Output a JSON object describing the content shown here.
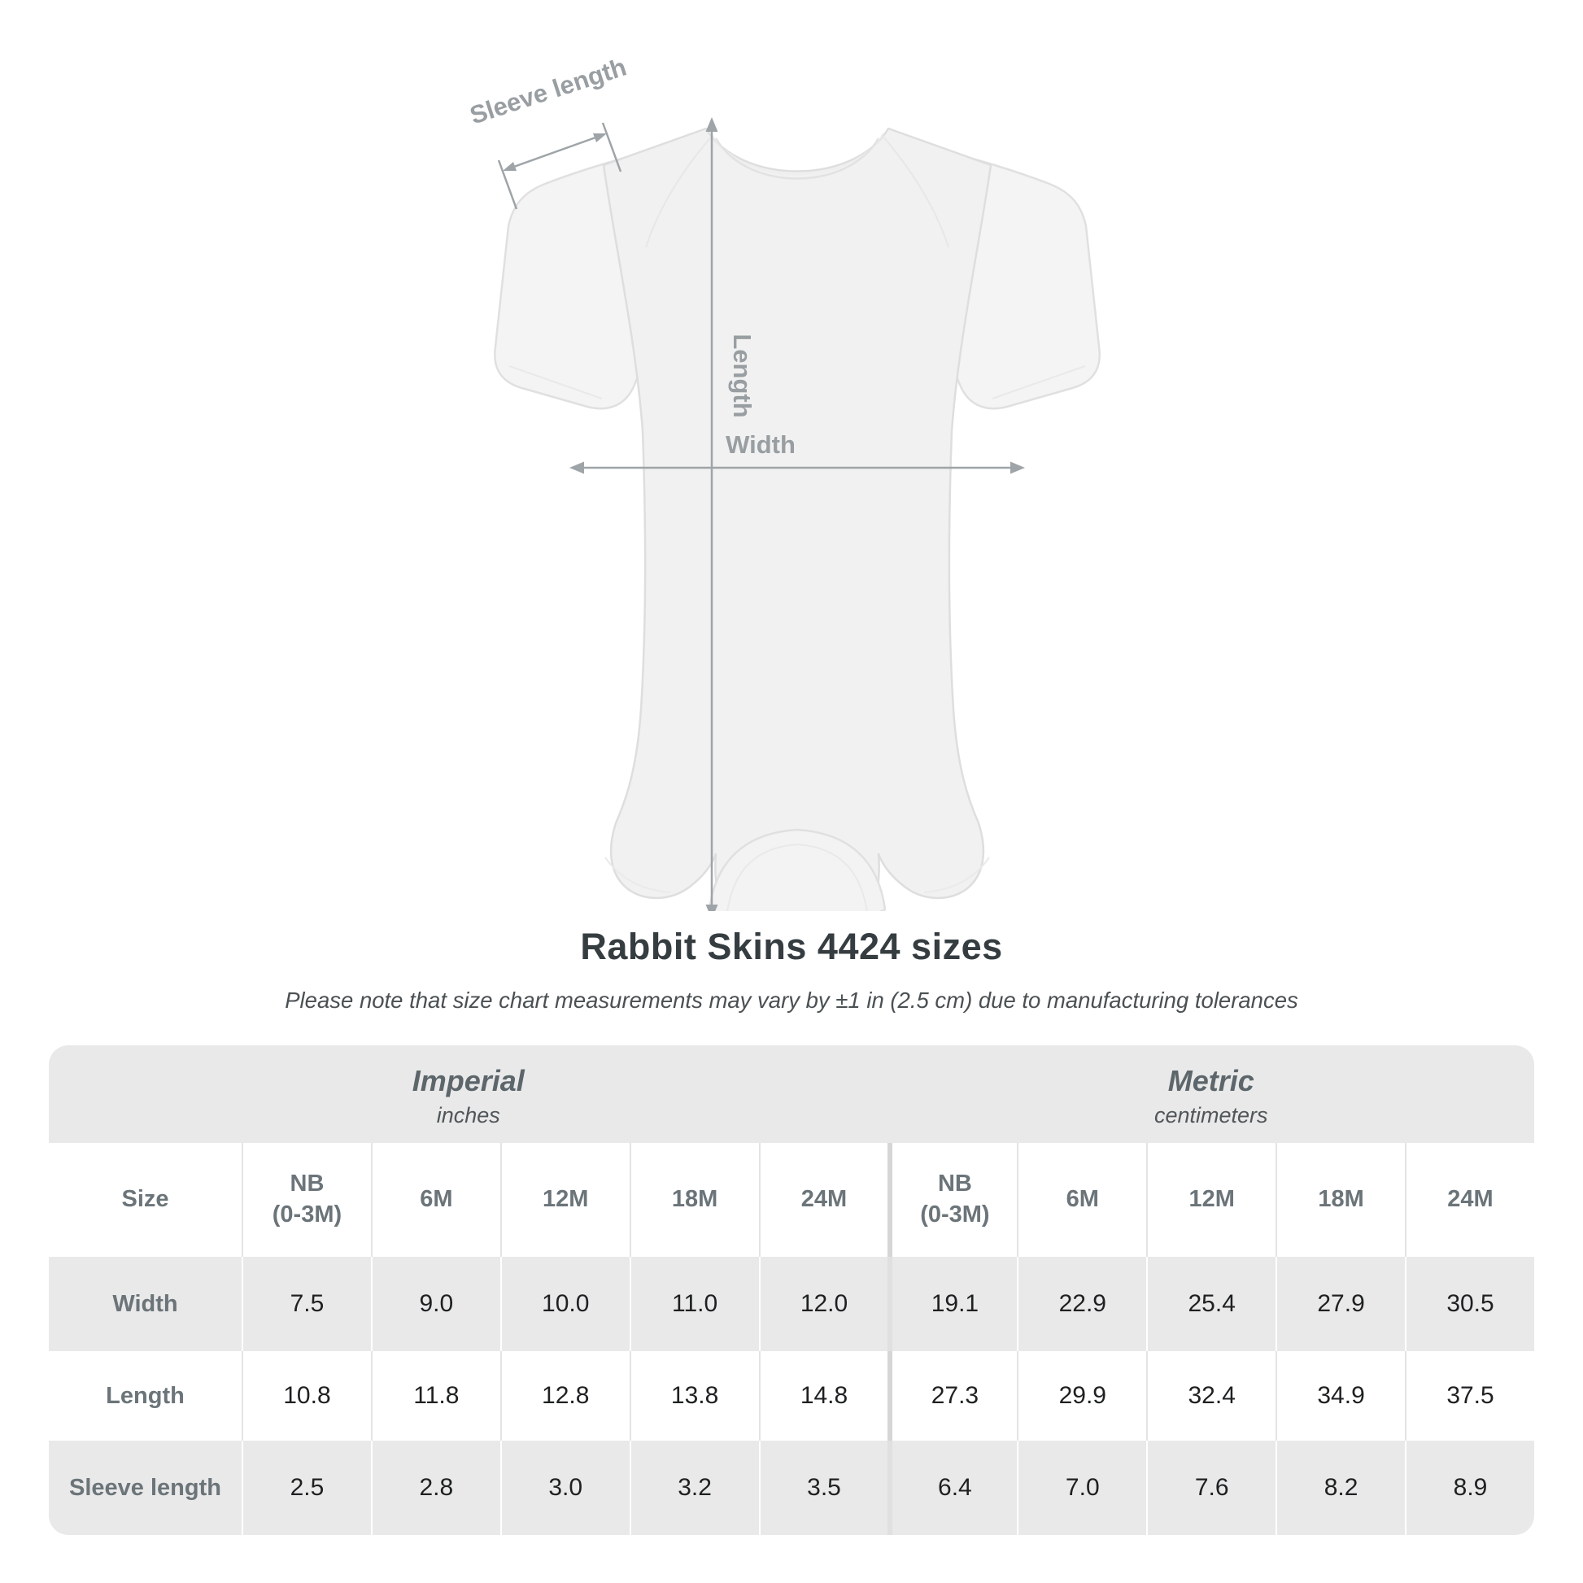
{
  "colors": {
    "table_band_gray": "#e9e9e9",
    "header_slate": "#6b7479",
    "value_ink": "#1e2021",
    "diagram_gray": "#9ea4a7",
    "title_ink": "#363d41",
    "garment_fill": "#f1f1f1",
    "garment_outline": "#dedede"
  },
  "diagram": {
    "sleeve_label": "Sleeve length",
    "length_label": "Length",
    "width_label": "Width"
  },
  "title": "Rabbit Skins 4424 sizes",
  "subtitle": "Please note that size chart measurements may vary by ±1 in (2.5 cm) due to manufacturing tolerances",
  "table": {
    "size_column_header": "Size",
    "groups": [
      {
        "name": "Imperial",
        "unit": "inches"
      },
      {
        "name": "Metric",
        "unit": "centimeters"
      }
    ],
    "imperial_sizes": [
      "NB\n(0-3M)",
      "6M",
      "12M",
      "18M",
      "24M"
    ],
    "metric_sizes": [
      "NB\n(0-3M)",
      "6M",
      "12M",
      "18M",
      "24M"
    ],
    "rows": [
      {
        "label": "Width",
        "values": [
          "7.5",
          "9.0",
          "10.0",
          "11.0",
          "12.0",
          "19.1",
          "22.9",
          "25.4",
          "27.9",
          "30.5"
        ]
      },
      {
        "label": "Length",
        "values": [
          "10.8",
          "11.8",
          "12.8",
          "13.8",
          "14.8",
          "27.3",
          "29.9",
          "32.4",
          "34.9",
          "37.5"
        ]
      },
      {
        "label": "Sleeve length",
        "values": [
          "2.5",
          "2.8",
          "3.0",
          "3.2",
          "3.5",
          "6.4",
          "7.0",
          "7.6",
          "8.2",
          "8.9"
        ]
      }
    ]
  },
  "chart_data": {
    "type": "table",
    "title": "Rabbit Skins 4424 sizes",
    "subtitle": "Please note that size chart measurements may vary by ±1 in (2.5 cm) due to manufacturing tolerances",
    "column_groups": [
      {
        "label": "Imperial",
        "unit": "inches",
        "columns": [
          "NB (0-3M)",
          "6M",
          "12M",
          "18M",
          "24M"
        ]
      },
      {
        "label": "Metric",
        "unit": "centimeters",
        "columns": [
          "NB (0-3M)",
          "6M",
          "12M",
          "18M",
          "24M"
        ]
      }
    ],
    "measurements": [
      {
        "label": "Width",
        "imperial": [
          7.5,
          9.0,
          10.0,
          11.0,
          12.0
        ],
        "metric": [
          19.1,
          22.9,
          25.4,
          27.9,
          30.5
        ]
      },
      {
        "label": "Length",
        "imperial": [
          10.8,
          11.8,
          12.8,
          13.8,
          14.8
        ],
        "metric": [
          27.3,
          29.9,
          32.4,
          34.9,
          37.5
        ]
      },
      {
        "label": "Sleeve length",
        "imperial": [
          2.5,
          2.8,
          3.0,
          3.2,
          3.5
        ],
        "metric": [
          6.4,
          7.0,
          7.6,
          8.2,
          8.9
        ]
      }
    ]
  }
}
